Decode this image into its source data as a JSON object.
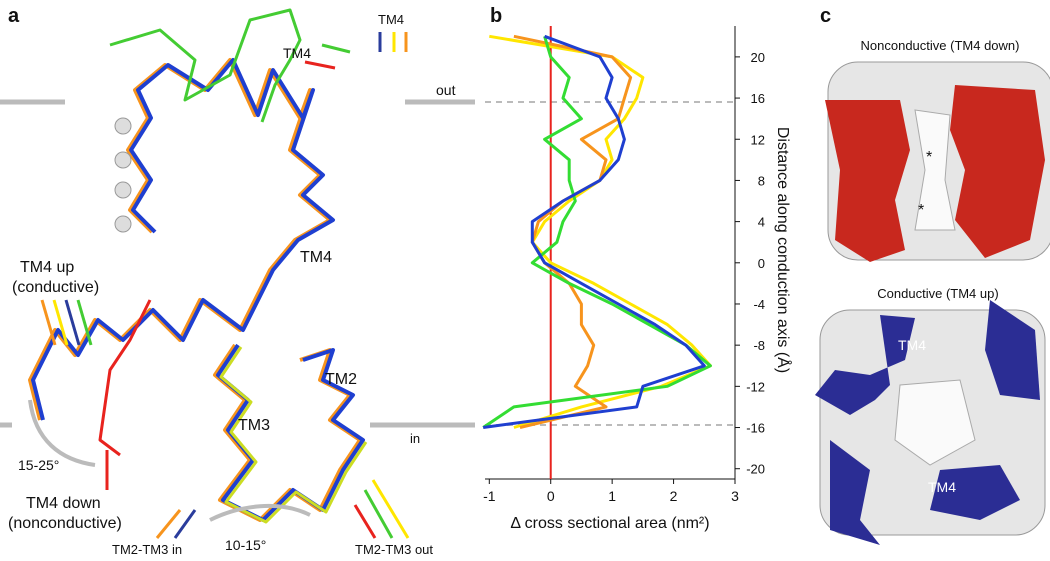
{
  "panel_a": {
    "label": "a",
    "tm4_top": "TM4",
    "tm4_arrow": "TM4",
    "out": "out",
    "in": "in",
    "tm4_mid": "TM4",
    "tm4_up": "TM4 up",
    "conductive": "(conductive)",
    "tm2": "TM2",
    "tm3": "TM3",
    "angle1": "15-25°",
    "tm4_down": "TM4 down",
    "nonconductive": "(nonconductive)",
    "tm23_in": "TM2-TM3 in",
    "angle2": "10-15°",
    "tm23_out": "TM2-TM3 out"
  },
  "chart_data": {
    "type": "line",
    "label": "b",
    "xlabel": "Δ cross sectional area (nm²)",
    "ylabel": "Distance along conduction axis (Å)",
    "xlim": [
      -1.07,
      3
    ],
    "xticks": [
      -1,
      0,
      1,
      2,
      3
    ],
    "ylim": [
      -21,
      23
    ],
    "yticks": [
      -20,
      -16,
      -12,
      -8,
      -4,
      0,
      4,
      8,
      12,
      16,
      20
    ],
    "y": [
      22,
      20,
      18,
      16,
      14,
      12,
      10,
      8,
      6,
      4,
      2,
      0,
      -2,
      -4,
      -6,
      -8,
      -10,
      -12,
      -14,
      -16
    ],
    "series": [
      {
        "color": "#ffe600",
        "values": [
          -1.0,
          1.0,
          1.5,
          1.4,
          1.2,
          0.9,
          1.0,
          0.8,
          0.3,
          -0.1,
          -0.3,
          0.0,
          0.7,
          1.3,
          1.9,
          2.3,
          2.6,
          1.8,
          0.5,
          -0.6
        ]
      },
      {
        "color": "#f7941d",
        "values": [
          -0.6,
          1.0,
          1.3,
          1.2,
          1.1,
          0.5,
          0.9,
          0.8,
          0.2,
          -0.2,
          -0.3,
          -0.1,
          0.3,
          0.5,
          0.5,
          0.7,
          0.6,
          0.4,
          0.9,
          -0.5
        ]
      },
      {
        "color": "#33dd33",
        "values": [
          -0.1,
          0.0,
          0.3,
          0.2,
          0.5,
          -0.1,
          0.3,
          0.3,
          0.4,
          0.2,
          0.1,
          -0.3,
          0.3,
          1.0,
          1.6,
          2.2,
          2.6,
          1.9,
          -0.6,
          -1.1
        ]
      },
      {
        "color": "#1f3fd0",
        "values": [
          -0.1,
          0.8,
          1.0,
          0.9,
          1.1,
          1.2,
          1.1,
          0.8,
          0.2,
          -0.3,
          -0.3,
          -0.1,
          0.5,
          1.1,
          1.7,
          2.2,
          2.5,
          1.5,
          1.4,
          -1.1
        ]
      }
    ],
    "zero_color": "#e8231e"
  },
  "panel_c": {
    "label": "c",
    "title_top": "Nonconductive (TM4 down)",
    "title_bottom": "Conductive (TM4 up)",
    "star1": "*",
    "star2": "*",
    "tm4_1": "TM4",
    "tm4_2": "TM4"
  }
}
